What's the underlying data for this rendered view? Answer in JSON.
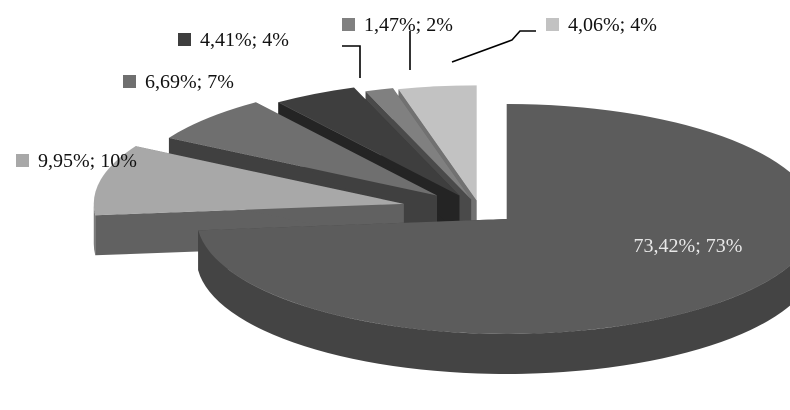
{
  "chart_data": {
    "type": "pie",
    "style": "3d-exploded",
    "legend": "none",
    "slices": [
      {
        "label": "73,42%; 73%",
        "value": 73.42,
        "color": "#5c5c5c"
      },
      {
        "label": "9,95%; 10%",
        "value": 9.95,
        "color": "#a8a8a8"
      },
      {
        "label": "6,69%; 7%",
        "value": 6.69,
        "color": "#6f6f6f"
      },
      {
        "label": "4,41%; 4%",
        "value": 4.41,
        "color": "#3e3e3e"
      },
      {
        "label": "1,47%; 2%",
        "value": 1.47,
        "color": "#808080"
      },
      {
        "label": "4,06%; 4%",
        "value": 4.06,
        "color": "#c2c2c2"
      }
    ]
  }
}
